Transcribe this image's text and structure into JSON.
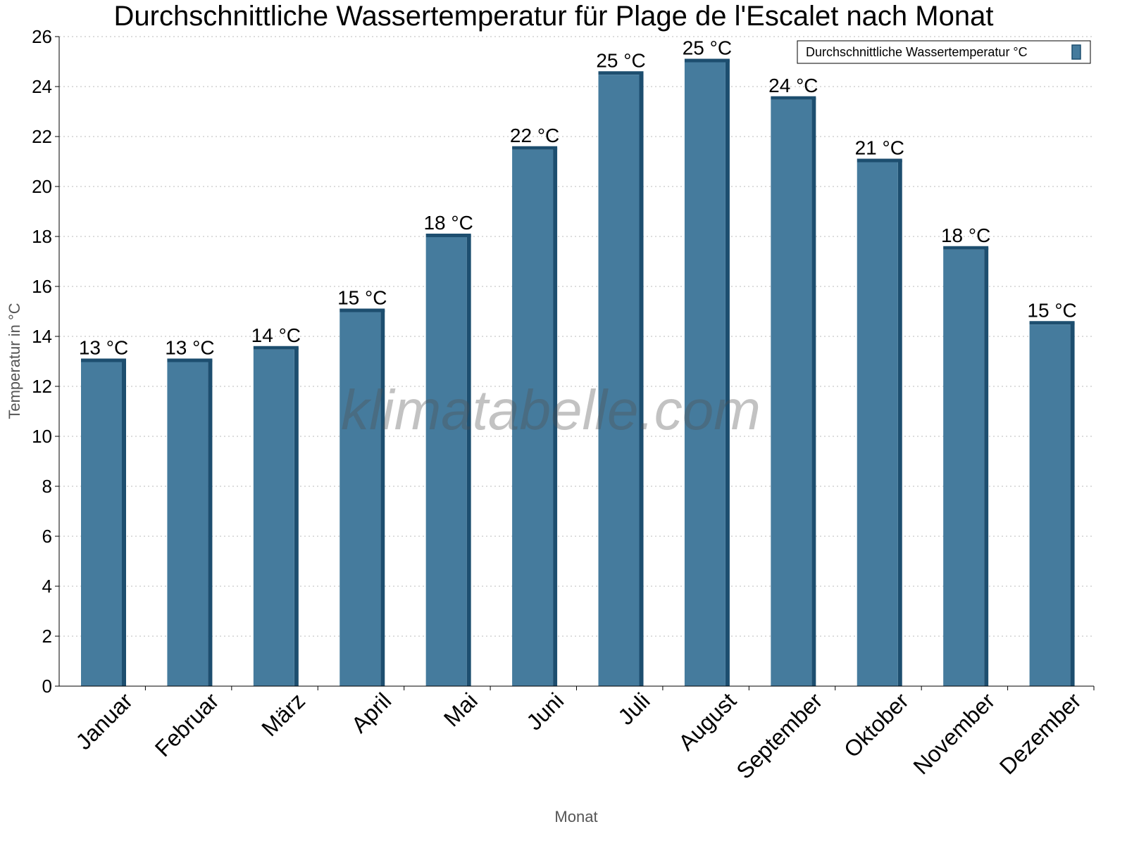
{
  "chart_data": {
    "type": "bar",
    "title": "Durchschnittliche Wassertemperatur für Plage de l'Escalet nach Monat",
    "xlabel": "Monat",
    "ylabel": "Temperatur in °C",
    "ylim": [
      0,
      26
    ],
    "yticks": [
      0,
      2,
      4,
      6,
      8,
      10,
      12,
      14,
      16,
      18,
      20,
      22,
      24,
      26
    ],
    "grid": true,
    "legend_position": "top-right",
    "categories": [
      "Januar",
      "Februar",
      "März",
      "April",
      "Mai",
      "Juni",
      "Juli",
      "August",
      "September",
      "Oktober",
      "November",
      "Dezember"
    ],
    "series": [
      {
        "name": "Durchschnittliche Wassertemperatur °C",
        "values": [
          13,
          13,
          13.5,
          15,
          18,
          21.5,
          24.5,
          25,
          23.5,
          21,
          17.5,
          14.5
        ],
        "labels": [
          "13 °C",
          "13 °C",
          "14 °C",
          "15 °C",
          "18 °C",
          "22 °C",
          "25 °C",
          "25 °C",
          "24 °C",
          "21 °C",
          "18 °C",
          "15 °C"
        ],
        "color": "#457b9d",
        "edge_color": "#1d4e6f"
      }
    ],
    "watermark": "klimatabelle.com"
  }
}
